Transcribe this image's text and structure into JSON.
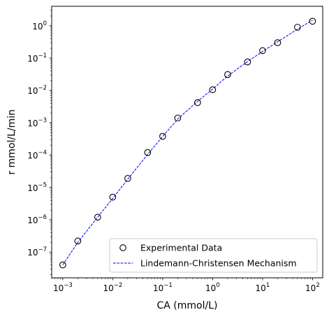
{
  "chart_data": {
    "type": "scatter",
    "xlabel": "CA (mmol/L)",
    "ylabel": "r mmol/L/min",
    "xscale": "log",
    "yscale": "log",
    "xlim": [
      0.0006,
      160
    ],
    "ylim": [
      1.6e-08,
      4
    ],
    "x_ticks": [
      0.001,
      0.01,
      0.1,
      1,
      10,
      100
    ],
    "x_tick_labels": [
      {
        "base": "10",
        "exp": "−3"
      },
      {
        "base": "10",
        "exp": "−2"
      },
      {
        "base": "10",
        "exp": "−1"
      },
      {
        "base": "10",
        "exp": "0"
      },
      {
        "base": "10",
        "exp": "1"
      },
      {
        "base": "10",
        "exp": "2"
      }
    ],
    "y_ticks": [
      1e-07,
      1e-06,
      1e-05,
      0.0001,
      0.001,
      0.01,
      0.1,
      1
    ],
    "y_tick_labels": [
      {
        "base": "10",
        "exp": "−7"
      },
      {
        "base": "10",
        "exp": "−6"
      },
      {
        "base": "10",
        "exp": "−5"
      },
      {
        "base": "10",
        "exp": "−4"
      },
      {
        "base": "10",
        "exp": "−3"
      },
      {
        "base": "10",
        "exp": "−2"
      },
      {
        "base": "10",
        "exp": "−1"
      },
      {
        "base": "10",
        "exp": "0"
      }
    ],
    "grid": false,
    "legend_position": "lower-right",
    "series": [
      {
        "name": "Experimental Data",
        "kind": "markers",
        "marker": "open-circle",
        "color": "#000000",
        "x": [
          0.001,
          0.002,
          0.005,
          0.01,
          0.02,
          0.05,
          0.1,
          0.2,
          0.5,
          1,
          2,
          5,
          10,
          20,
          50,
          100
        ],
        "y": [
          4e-08,
          2.2e-07,
          1.2e-06,
          5e-06,
          1.9e-05,
          0.00012,
          0.00038,
          0.0014,
          0.0042,
          0.0105,
          0.031,
          0.076,
          0.17,
          0.3,
          0.9,
          1.38
        ]
      },
      {
        "name": "Lindemann-Christensen Mechanism",
        "kind": "line",
        "linestyle": "dashed",
        "color": "#0000ff",
        "x": [
          0.001,
          0.002,
          0.005,
          0.01,
          0.02,
          0.05,
          0.1,
          0.2,
          0.5,
          1,
          2,
          5,
          10,
          20,
          50,
          100
        ],
        "y": [
          4e-08,
          2e-07,
          1.2e-06,
          4.6e-06,
          1.8e-05,
          0.000105,
          0.00038,
          0.0013,
          0.0046,
          0.011,
          0.028,
          0.078,
          0.16,
          0.32,
          0.78,
          1.5
        ]
      }
    ]
  }
}
